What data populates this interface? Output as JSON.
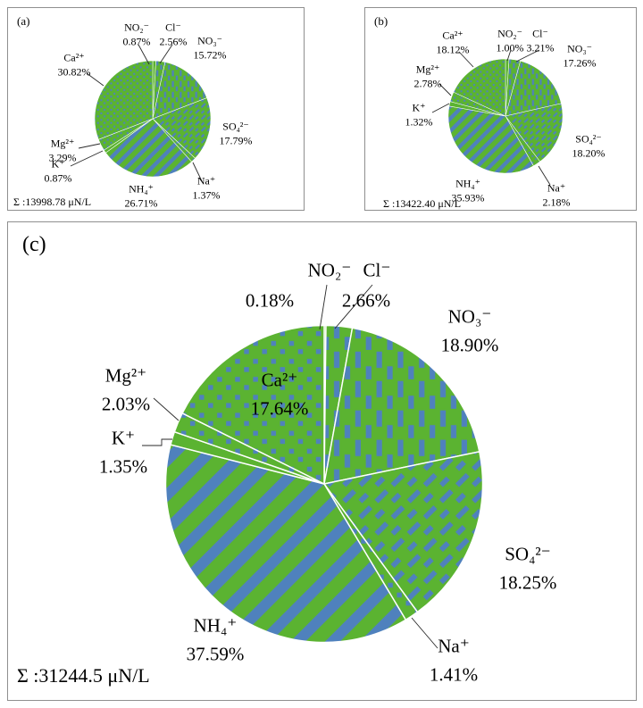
{
  "colors": {
    "green": "#5bb331",
    "blue": "#4f81bd",
    "border": "#8f8f8f",
    "text": "#000000",
    "slice_divider": "#ffffff"
  },
  "chart_data": [
    {
      "type": "pie",
      "panel_label": "(a)",
      "total_line": "Σ :13998.78 μN/L",
      "total_value": 13998.78,
      "total_unit": "μN/L",
      "order": "clockwise-from-top",
      "slices": [
        {
          "ion": "NO₂⁻",
          "value": 0.87,
          "pct": "0.87%",
          "pattern": "plain"
        },
        {
          "ion": "Cl⁻",
          "value": 2.56,
          "pct": "2.56%",
          "pattern": "vdash"
        },
        {
          "ion": "NO₃⁻",
          "value": 15.72,
          "pct": "15.72%",
          "pattern": "vdash"
        },
        {
          "ion": "SO₄²⁻",
          "value": 17.79,
          "pct": "17.79%",
          "pattern": "ddash"
        },
        {
          "ion": "Na⁺",
          "value": 1.37,
          "pct": "1.37%",
          "pattern": "dots"
        },
        {
          "ion": "NH₄⁺",
          "value": 26.71,
          "pct": "26.71%",
          "pattern": "stripes"
        },
        {
          "ion": "K⁺",
          "value": 0.87,
          "pct": "0.87%",
          "pattern": "plain"
        },
        {
          "ion": "Mg²⁺",
          "value": 3.29,
          "pct": "3.29%",
          "pattern": "dots"
        },
        {
          "ion": "Ca²⁺",
          "value": 30.82,
          "pct": "30.82%",
          "pattern": "dots"
        }
      ]
    },
    {
      "type": "pie",
      "panel_label": "(b)",
      "total_line": "Σ :13422.40 μN/L",
      "total_value": 13422.4,
      "total_unit": "μN/L",
      "order": "clockwise-from-top",
      "slices": [
        {
          "ion": "NO₂⁻",
          "value": 1.0,
          "pct": "1.00%",
          "pattern": "plain"
        },
        {
          "ion": "Cl⁻",
          "value": 3.21,
          "pct": "3.21%",
          "pattern": "vdash"
        },
        {
          "ion": "NO₃⁻",
          "value": 17.26,
          "pct": "17.26%",
          "pattern": "vdash"
        },
        {
          "ion": "SO₄²⁻",
          "value": 18.2,
          "pct": "18.20%",
          "pattern": "ddash"
        },
        {
          "ion": "Na⁺",
          "value": 2.18,
          "pct": "2.18%",
          "pattern": "dots"
        },
        {
          "ion": "NH₄⁺",
          "value": 35.93,
          "pct": "35.93%",
          "pattern": "stripes"
        },
        {
          "ion": "K⁺",
          "value": 1.32,
          "pct": "1.32%",
          "pattern": "plain"
        },
        {
          "ion": "Mg²⁺",
          "value": 2.78,
          "pct": "2.78%",
          "pattern": "dots"
        },
        {
          "ion": "Ca²⁺",
          "value": 18.12,
          "pct": "18.12%",
          "pattern": "dots"
        }
      ]
    },
    {
      "type": "pie",
      "panel_label": "(c)",
      "total_line": "Σ :31244.5 μN/L",
      "total_value": 31244.5,
      "total_unit": "μN/L",
      "order": "clockwise-from-top",
      "slices": [
        {
          "ion": "NO₂⁻",
          "value": 0.18,
          "pct": "0.18%",
          "pattern": "plain"
        },
        {
          "ion": "Cl⁻",
          "value": 2.66,
          "pct": "2.66%",
          "pattern": "vdash"
        },
        {
          "ion": "NO₃⁻",
          "value": 18.9,
          "pct": "18.90%",
          "pattern": "vdash"
        },
        {
          "ion": "SO₄²⁻",
          "value": 18.25,
          "pct": "18.25%",
          "pattern": "ddash"
        },
        {
          "ion": "Na⁺",
          "value": 1.41,
          "pct": "1.41%",
          "pattern": "dots"
        },
        {
          "ion": "NH₄⁺",
          "value": 37.59,
          "pct": "37.59%",
          "pattern": "stripes"
        },
        {
          "ion": "K⁺",
          "value": 1.35,
          "pct": "1.35%",
          "pattern": "plain"
        },
        {
          "ion": "Mg²⁺",
          "value": 2.03,
          "pct": "2.03%",
          "pattern": "dots"
        },
        {
          "ion": "Ca²⁺",
          "value": 17.64,
          "pct": "17.64%",
          "pattern": "dots"
        }
      ]
    }
  ]
}
